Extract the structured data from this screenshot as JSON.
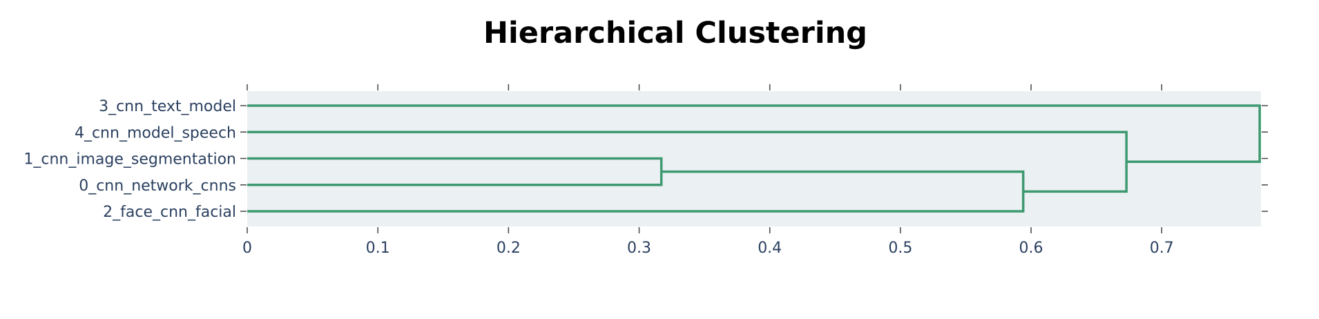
{
  "chart_data": {
    "type": "dendrogram",
    "title": "Hierarchical Clustering",
    "xlabel": "",
    "ylabel": "",
    "xlim": [
      0,
      0.776
    ],
    "x_ticks": [
      0,
      0.1,
      0.2,
      0.3,
      0.4,
      0.5,
      0.6,
      0.7
    ],
    "x_tick_labels": [
      "0",
      "0.1",
      "0.2",
      "0.3",
      "0.4",
      "0.5",
      "0.6",
      "0.7"
    ],
    "leaves": [
      "3_cnn_text_model",
      "4_cnn_model_speech",
      "1_cnn_image_segmentation",
      "0_cnn_network_cnns",
      "2_face_cnn_facial"
    ],
    "merges": [
      {
        "children": [
          "1_cnn_image_segmentation",
          "0_cnn_network_cnns"
        ],
        "distance": 0.317
      },
      {
        "children": [
          "cluster_1_0",
          "2_face_cnn_facial"
        ],
        "distance": 0.594
      },
      {
        "children": [
          "4_cnn_model_speech",
          "cluster_1_0_2"
        ],
        "distance": 0.673
      },
      {
        "children": [
          "3_cnn_text_model",
          "cluster_4_1_0_2"
        ],
        "distance": 0.775
      }
    ],
    "grid": false,
    "background_color": "#ebf0f2",
    "line_color": "#3d9970"
  }
}
